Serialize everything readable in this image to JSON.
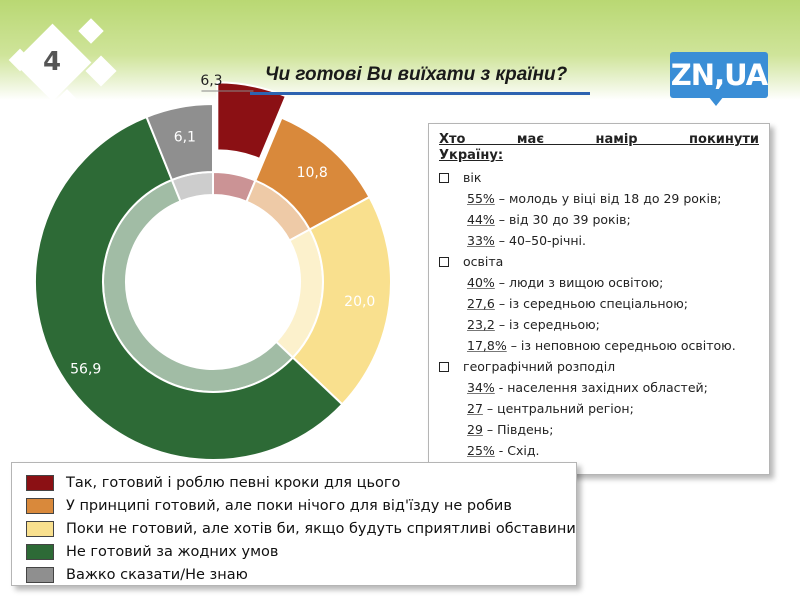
{
  "slide_number": "4",
  "title": "Чи готові Ви виїхати з країни?",
  "logo_text": "ZN,UA",
  "chart_data": {
    "type": "pie",
    "style": "donut",
    "title": "Чи готові Ви виїхати з країни?",
    "series": [
      {
        "name": "Так, готовий і роблю певні кроки для цього",
        "value": 6.3,
        "label": "6,3",
        "color": "#8b1014",
        "exploded": true
      },
      {
        "name": "У принципі готовий, але поки нічого для від'їзду не робив",
        "value": 10.8,
        "label": "10,8",
        "color": "#d9893b"
      },
      {
        "name": "Поки не готовий, але хотів би, якщо будуть сприятливі обставини",
        "value": 20.0,
        "label": "20,0",
        "color": "#f9e08e"
      },
      {
        "name": "Не готовий за жодних умов",
        "value": 56.9,
        "label": "56,9",
        "color": "#2d6a36"
      },
      {
        "name": "Важко сказати/Не знаю",
        "value": 6.1,
        "label": "6,1",
        "color": "#8f8f8f"
      }
    ],
    "legend_position": "bottom-left"
  },
  "info_box": {
    "heading": "Хто має намір покинути Україну:",
    "sections": [
      {
        "label": "вік",
        "items": [
          {
            "pct": "55%",
            "text": " – молодь у віці від 18 до 29 років;"
          },
          {
            "pct": "44%",
            "text": " – від 30 до 39 років;"
          },
          {
            "pct": "33%",
            "text": " – 40–50-річні."
          }
        ]
      },
      {
        "label": "освіта",
        "items": [
          {
            "pct": "40%",
            "text": " – люди з вищою освітою;"
          },
          {
            "pct": "27,6",
            "text": " – із середньою спеціальною;"
          },
          {
            "pct": "23,2",
            "text": " – із середньою;"
          },
          {
            "pct": "17,8%",
            "text": " – із неповною середньою освітою."
          }
        ]
      },
      {
        "label": "географічний розподіл",
        "items": [
          {
            "pct": "34%",
            "text": " - населення західних областей;"
          },
          {
            "pct": "27",
            "text": " – центральний регіон;"
          },
          {
            "pct": "29",
            "text": " – Південь;"
          },
          {
            "pct": "25%",
            "text": " - Схід."
          }
        ]
      }
    ]
  }
}
